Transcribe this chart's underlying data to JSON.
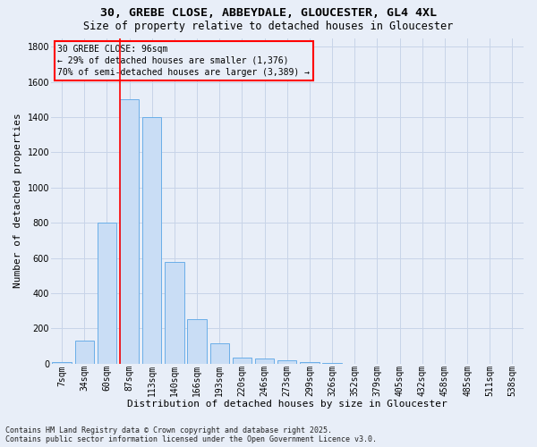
{
  "title_line1": "30, GREBE CLOSE, ABBEYDALE, GLOUCESTER, GL4 4XL",
  "title_line2": "Size of property relative to detached houses in Gloucester",
  "xlabel": "Distribution of detached houses by size in Gloucester",
  "ylabel": "Number of detached properties",
  "categories": [
    "7sqm",
    "34sqm",
    "60sqm",
    "87sqm",
    "113sqm",
    "140sqm",
    "166sqm",
    "193sqm",
    "220sqm",
    "246sqm",
    "273sqm",
    "299sqm",
    "326sqm",
    "352sqm",
    "379sqm",
    "405sqm",
    "432sqm",
    "458sqm",
    "485sqm",
    "511sqm",
    "538sqm"
  ],
  "values": [
    10,
    130,
    800,
    1500,
    1400,
    575,
    250,
    115,
    35,
    30,
    20,
    10,
    5,
    0,
    0,
    0,
    0,
    0,
    0,
    0,
    0
  ],
  "bar_color": "#c9ddf5",
  "bar_edge_color": "#6aaee8",
  "grid_color": "#c8d4e8",
  "background_color": "#e8eef8",
  "vline_color": "red",
  "vline_x_index": 3,
  "annotation_text": "30 GREBE CLOSE: 96sqm\n← 29% of detached houses are smaller (1,376)\n70% of semi-detached houses are larger (3,389) →",
  "annotation_box_color": "red",
  "ylim": [
    0,
    1850
  ],
  "yticks": [
    0,
    200,
    400,
    600,
    800,
    1000,
    1200,
    1400,
    1600,
    1800
  ],
  "footer_line1": "Contains HM Land Registry data © Crown copyright and database right 2025.",
  "footer_line2": "Contains public sector information licensed under the Open Government Licence v3.0.",
  "title1_fontsize": 9.5,
  "title2_fontsize": 8.5,
  "ylabel_fontsize": 8,
  "xlabel_fontsize": 8,
  "tick_fontsize": 7,
  "ann_fontsize": 7,
  "footer_fontsize": 6
}
